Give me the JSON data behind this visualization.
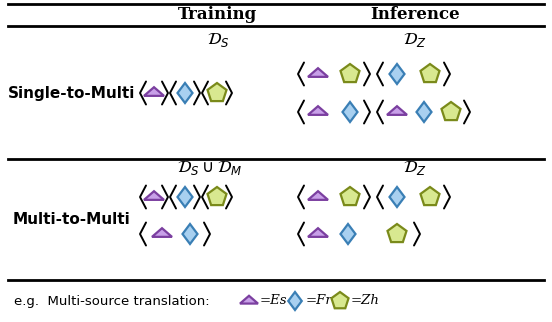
{
  "tri_ec": "#7B3FA0",
  "dia_ec": "#3A7FB5",
  "pen_ec": "#7A8A1A",
  "tri_fc": "#C8A0E8",
  "dia_fc": "#A8D0F0",
  "pen_fc": "#D8E890",
  "bg_color": "#FFFFFF",
  "header_training": "Training",
  "header_inference": "Inference",
  "row1_label": "Single-to-Multi",
  "row2_label": "Multi-to-Multi",
  "legend_text": "e.g.  Multi-source translation:",
  "es_label": "=Es",
  "fr_label": "=Fr",
  "zh_label": "=Zh",
  "line_color": "#000000"
}
